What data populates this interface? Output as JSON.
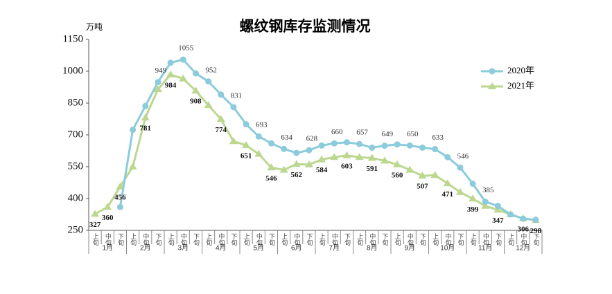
{
  "chart_data": {
    "type": "line",
    "title": "螺纹钢库存监测情况",
    "y_axis_label": "万吨",
    "categories": [
      "上旬",
      "中旬",
      "下旬",
      "上旬",
      "中旬",
      "下旬",
      "上旬",
      "中旬",
      "下旬",
      "上旬",
      "中旬",
      "下旬",
      "上旬",
      "中旬",
      "下旬",
      "上旬",
      "中旬",
      "下旬",
      "上旬",
      "中旬",
      "下旬",
      "上旬",
      "中旬",
      "下旬",
      "上旬",
      "中旬",
      "下旬",
      "上旬",
      "中旬",
      "下旬",
      "上旬",
      "中旬",
      "下旬",
      "上旬",
      "中旬",
      "下旬"
    ],
    "months": [
      "1月",
      "2月",
      "3月",
      "4月",
      "5月",
      "6月",
      "7月",
      "8月",
      "9月",
      "10月",
      "11月",
      "12月"
    ],
    "ylim": [
      250,
      1150
    ],
    "yticks": [
      250,
      400,
      550,
      700,
      850,
      1000,
      1150
    ],
    "legend": "upper right",
    "series": [
      {
        "name": "2020年",
        "color": "#8ccbdb",
        "marker": "circle",
        "values": [
          null,
          null,
          360,
          724,
          836,
          949,
          1040,
          1055,
          990,
          952,
          890,
          831,
          750,
          693,
          660,
          634,
          615,
          628,
          650,
          660,
          665,
          657,
          640,
          649,
          655,
          650,
          640,
          633,
          595,
          546,
          470,
          385,
          365,
          325,
          305,
          300
        ],
        "value_labels": [
          null,
          null,
          null,
          null,
          null,
          "949",
          null,
          "1055",
          null,
          "952",
          null,
          "831",
          null,
          "693",
          null,
          "634",
          null,
          "628",
          null,
          "660",
          null,
          "657",
          null,
          "649",
          null,
          "650",
          null,
          "633",
          null,
          "546",
          null,
          "385",
          null,
          null,
          null,
          null
        ]
      },
      {
        "name": "2021年",
        "color": "#bcd78f",
        "marker": "triangle",
        "values": [
          327,
          360,
          456,
          550,
          781,
          915,
          984,
          965,
          908,
          840,
          774,
          670,
          651,
          610,
          546,
          535,
          562,
          560,
          584,
          595,
          603,
          595,
          591,
          578,
          560,
          535,
          507,
          510,
          471,
          430,
          399,
          365,
          347,
          325,
          306,
          298
        ],
        "value_labels": [
          "327",
          "360",
          "456",
          null,
          "781",
          null,
          "984",
          null,
          "908",
          null,
          "774",
          null,
          "651",
          null,
          "546",
          null,
          "562",
          null,
          "584",
          null,
          "603",
          null,
          "591",
          null,
          "560",
          null,
          "507",
          null,
          "471",
          null,
          "399",
          null,
          "347",
          null,
          "306",
          "298"
        ]
      }
    ]
  }
}
